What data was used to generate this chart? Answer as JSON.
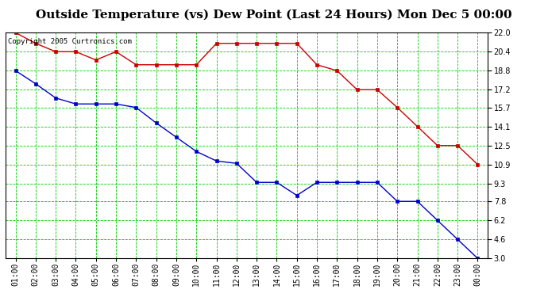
{
  "title": "Outside Temperature (vs) Dew Point (Last 24 Hours) Mon Dec 5 00:00",
  "copyright": "Copyright 2005 Curtronics.com",
  "x_labels": [
    "01:00",
    "02:00",
    "03:00",
    "04:00",
    "05:00",
    "06:00",
    "07:00",
    "08:00",
    "09:00",
    "10:00",
    "11:00",
    "12:00",
    "13:00",
    "14:00",
    "15:00",
    "16:00",
    "17:00",
    "18:00",
    "19:00",
    "20:00",
    "21:00",
    "22:00",
    "23:00",
    "00:00"
  ],
  "x_values": [
    1,
    2,
    3,
    4,
    5,
    6,
    7,
    8,
    9,
    10,
    11,
    12,
    13,
    14,
    15,
    16,
    17,
    18,
    19,
    20,
    21,
    22,
    23,
    24
  ],
  "red_line": [
    22.0,
    21.1,
    20.4,
    20.4,
    19.7,
    20.4,
    19.3,
    19.3,
    19.3,
    19.3,
    21.1,
    21.1,
    21.1,
    21.1,
    21.1,
    19.3,
    18.8,
    17.2,
    17.2,
    15.7,
    14.1,
    12.5,
    12.5,
    10.9
  ],
  "blue_line": [
    18.8,
    17.7,
    16.5,
    16.0,
    16.0,
    16.0,
    15.7,
    14.4,
    13.2,
    12.0,
    11.2,
    11.0,
    9.4,
    9.4,
    8.3,
    9.4,
    9.4,
    9.4,
    9.4,
    7.8,
    7.8,
    6.2,
    4.6,
    3.0
  ],
  "y_ticks": [
    3.0,
    4.6,
    6.2,
    7.8,
    9.3,
    10.9,
    12.5,
    14.1,
    15.7,
    17.2,
    18.8,
    20.4,
    22.0
  ],
  "ylim": [
    3.0,
    22.0
  ],
  "background_color": "#ffffff",
  "plot_bg_color": "#ffffff",
  "grid_color": "#00cc00",
  "red_color": "#cc0000",
  "blue_color": "#0000cc",
  "title_fontsize": 11,
  "copyright_fontsize": 6.5,
  "tick_fontsize": 7,
  "figwidth": 6.9,
  "figheight": 3.75,
  "dpi": 100
}
